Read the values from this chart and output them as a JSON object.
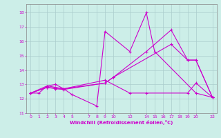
{
  "xlabel": "Windchill (Refroidissement éolien,°C)",
  "background_color": "#cceee8",
  "grid_color": "#aacccc",
  "line_color": "#cc00cc",
  "xlim": [
    -0.5,
    22.5
  ],
  "ylim": [
    11.0,
    18.6
  ],
  "xticks": [
    0,
    1,
    2,
    3,
    4,
    5,
    7,
    8,
    9,
    10,
    12,
    14,
    15,
    16,
    17,
    18,
    19,
    20,
    22
  ],
  "yticks": [
    11,
    12,
    13,
    14,
    15,
    16,
    17,
    18
  ],
  "series": [
    {
      "x": [
        0,
        2,
        3,
        4,
        9,
        10,
        14,
        17,
        19,
        20,
        22
      ],
      "y": [
        12.4,
        12.8,
        12.75,
        12.7,
        13.1,
        13.5,
        15.3,
        16.8,
        14.7,
        14.7,
        12.1
      ]
    },
    {
      "x": [
        0,
        2,
        3,
        4,
        5,
        8,
        9,
        12,
        14,
        15,
        20,
        22
      ],
      "y": [
        12.4,
        12.9,
        12.8,
        12.7,
        12.3,
        11.5,
        16.7,
        15.3,
        18.0,
        15.3,
        12.4,
        12.1
      ]
    },
    {
      "x": [
        0,
        1,
        2,
        3,
        4,
        9,
        12,
        14,
        19,
        20,
        22
      ],
      "y": [
        12.4,
        12.4,
        12.9,
        13.0,
        12.7,
        13.3,
        12.4,
        12.4,
        12.4,
        13.1,
        12.1
      ]
    },
    {
      "x": [
        0,
        2,
        3,
        4,
        9,
        10,
        17,
        19,
        20,
        22
      ],
      "y": [
        12.4,
        12.8,
        12.7,
        12.65,
        13.1,
        13.5,
        15.8,
        14.7,
        14.7,
        12.1
      ]
    }
  ]
}
